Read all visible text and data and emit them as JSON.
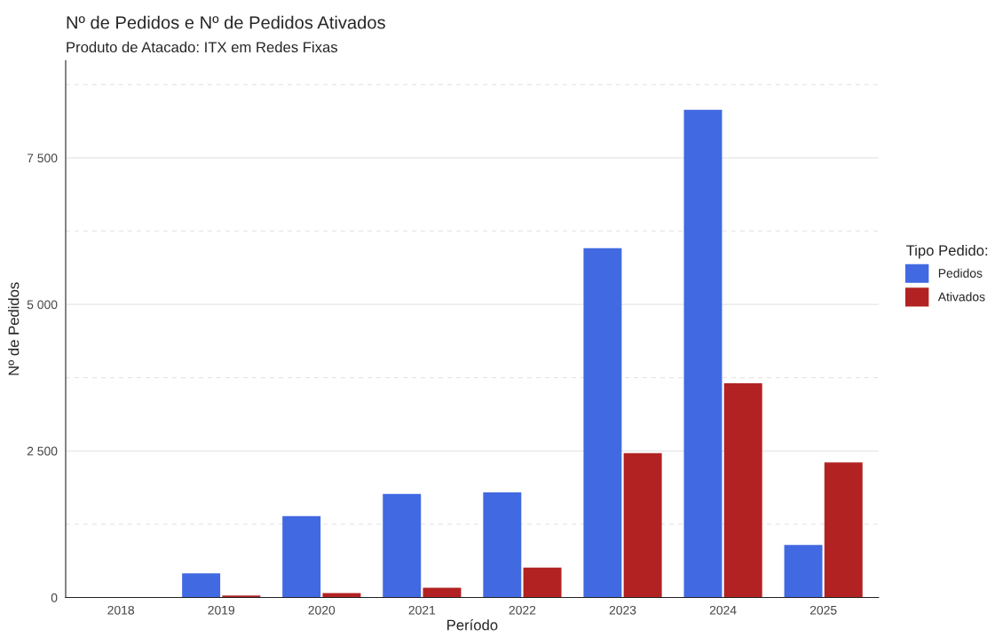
{
  "chart_data": {
    "type": "bar",
    "title": "Nº de Pedidos e Nº de Pedidos Ativados",
    "subtitle": "Produto de Atacado: ITX em Redes Fixas",
    "xlabel": "Período",
    "ylabel": "Nº de Pedidos",
    "legend_title": "Tipo Pedido:",
    "categories": [
      "2018",
      "2019",
      "2020",
      "2021",
      "2022",
      "2023",
      "2024",
      "2025"
    ],
    "series": [
      {
        "name": "Pedidos",
        "color": "#4169e1",
        "values": [
          0,
          414,
          1388,
          1767,
          1794,
          5960,
          8320,
          898
        ]
      },
      {
        "name": "Ativados",
        "color": "#b22222",
        "values": [
          0,
          35,
          77,
          165,
          511,
          2462,
          3655,
          2303
        ]
      }
    ],
    "ylim": [
      0,
      9160
    ],
    "yticks": [
      {
        "value": 0,
        "label": "0"
      },
      {
        "value": 1250,
        "label": null
      },
      {
        "value": 2500,
        "label": "2 500"
      },
      {
        "value": 3750,
        "label": null
      },
      {
        "value": 5000,
        "label": "5 000"
      },
      {
        "value": 6250,
        "label": null
      },
      {
        "value": 7500,
        "label": "7 500"
      },
      {
        "value": 8750,
        "label": null
      }
    ],
    "grid": "y",
    "legend": "right"
  }
}
